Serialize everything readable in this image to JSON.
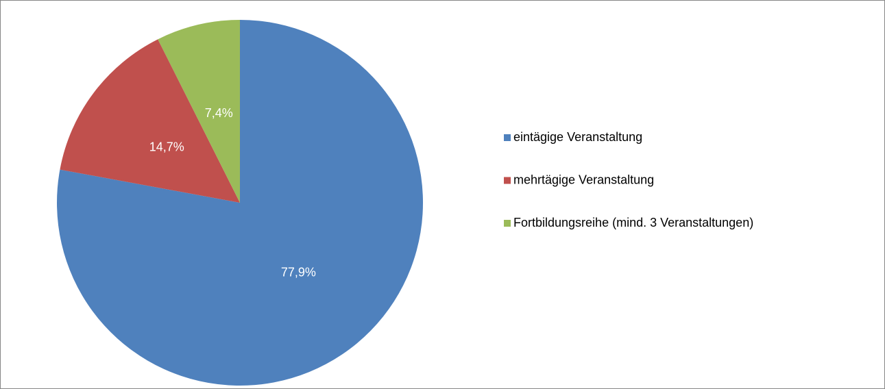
{
  "chart_data": {
    "type": "pie",
    "categories": [
      "eintägige Veranstaltung",
      "mehrtägige Veranstaltung",
      "Fortbildungsreihe (mind. 3 Veranstaltungen)"
    ],
    "values": [
      77.9,
      14.7,
      7.4
    ],
    "value_labels": [
      "77,9%",
      "14,7%",
      "7,4%"
    ],
    "colors": [
      "#4f81bd",
      "#c0504d",
      "#9bbb59"
    ],
    "legend": "right"
  }
}
